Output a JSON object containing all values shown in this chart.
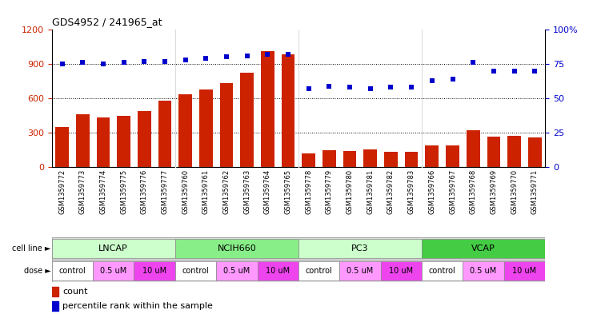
{
  "title": "GDS4952 / 241965_at",
  "samples": [
    "GSM1359772",
    "GSM1359773",
    "GSM1359774",
    "GSM1359775",
    "GSM1359776",
    "GSM1359777",
    "GSM1359760",
    "GSM1359761",
    "GSM1359762",
    "GSM1359763",
    "GSM1359764",
    "GSM1359765",
    "GSM1359778",
    "GSM1359779",
    "GSM1359780",
    "GSM1359781",
    "GSM1359782",
    "GSM1359783",
    "GSM1359766",
    "GSM1359767",
    "GSM1359768",
    "GSM1359769",
    "GSM1359770",
    "GSM1359771"
  ],
  "bar_values": [
    350,
    460,
    430,
    450,
    490,
    580,
    635,
    680,
    730,
    820,
    1010,
    985,
    120,
    145,
    140,
    155,
    130,
    135,
    185,
    190,
    320,
    265,
    270,
    255
  ],
  "percentile_values": [
    75,
    76,
    75,
    76,
    77,
    77,
    78,
    79,
    80,
    81,
    82,
    82,
    57,
    59,
    58,
    57,
    58,
    58,
    63,
    64,
    76,
    70,
    70,
    70
  ],
  "cell_lines": [
    {
      "label": "LNCAP",
      "start": 0,
      "end": 6,
      "color": "#ccffcc"
    },
    {
      "label": "NCIH660",
      "start": 6,
      "end": 12,
      "color": "#88ee88"
    },
    {
      "label": "PC3",
      "start": 12,
      "end": 18,
      "color": "#ccffcc"
    },
    {
      "label": "VCAP",
      "start": 18,
      "end": 24,
      "color": "#44cc44"
    }
  ],
  "doses": [
    {
      "label": "control",
      "start": 0,
      "end": 2,
      "color": "#ffffff"
    },
    {
      "label": "0.5 uM",
      "start": 2,
      "end": 4,
      "color": "#ff99ff"
    },
    {
      "label": "10 uM",
      "start": 4,
      "end": 6,
      "color": "#ee44ee"
    },
    {
      "label": "control",
      "start": 6,
      "end": 8,
      "color": "#ffffff"
    },
    {
      "label": "0.5 uM",
      "start": 8,
      "end": 10,
      "color": "#ff99ff"
    },
    {
      "label": "10 uM",
      "start": 10,
      "end": 12,
      "color": "#ee44ee"
    },
    {
      "label": "control",
      "start": 12,
      "end": 14,
      "color": "#ffffff"
    },
    {
      "label": "0.5 uM",
      "start": 14,
      "end": 16,
      "color": "#ff99ff"
    },
    {
      "label": "10 uM",
      "start": 16,
      "end": 18,
      "color": "#ee44ee"
    },
    {
      "label": "control",
      "start": 18,
      "end": 20,
      "color": "#ffffff"
    },
    {
      "label": "0.5 uM",
      "start": 20,
      "end": 22,
      "color": "#ff99ff"
    },
    {
      "label": "10 uM",
      "start": 22,
      "end": 24,
      "color": "#ee44ee"
    }
  ],
  "bar_color": "#cc2200",
  "dot_color": "#0000cc",
  "ylim_left": [
    0,
    1200
  ],
  "ylim_right": [
    0,
    100
  ],
  "yticks_left": [
    0,
    300,
    600,
    900,
    1200
  ],
  "yticks_right": [
    0,
    25,
    50,
    75,
    100
  ]
}
